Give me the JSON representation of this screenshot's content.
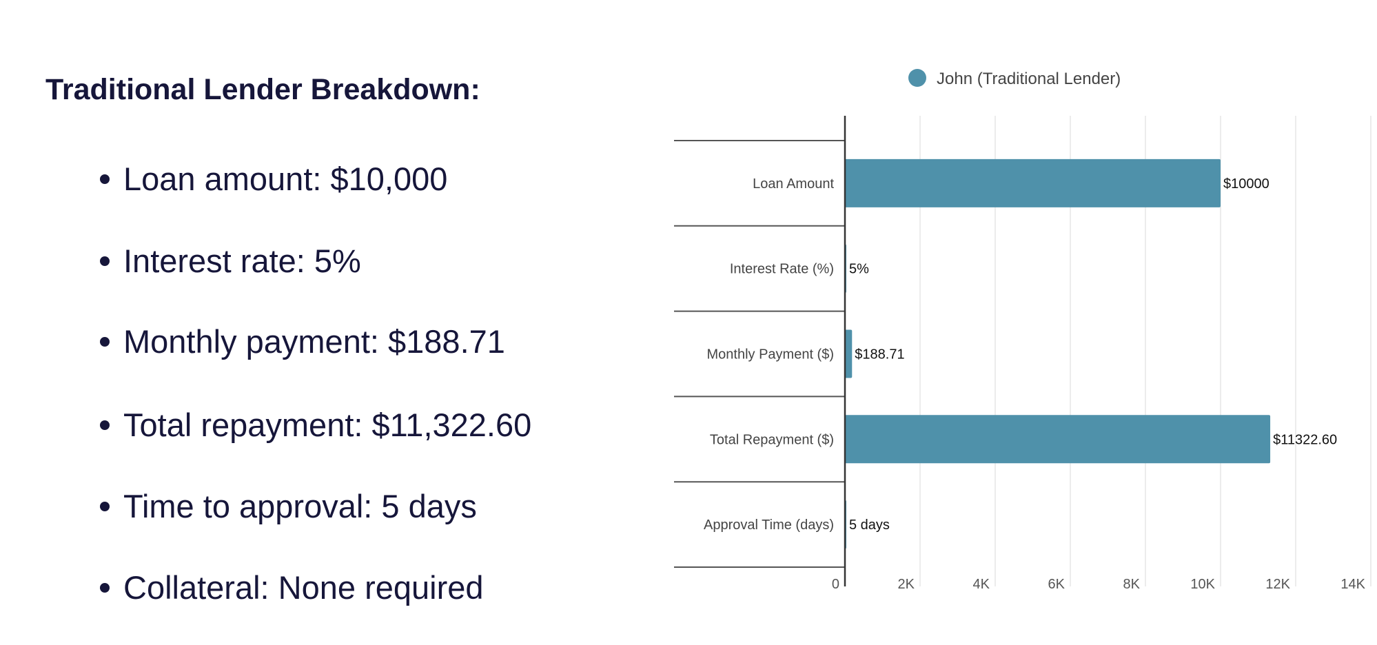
{
  "breakdown": {
    "title": "Traditional Lender Breakdown:",
    "items": [
      "Loan amount: $10,000",
      "Interest rate: 5%",
      "Monthly payment: $188.71",
      "Total repayment: $11,322.60",
      "Time to approval: 5 days",
      "Collateral: None required"
    ]
  },
  "chart_data": {
    "type": "bar",
    "orientation": "horizontal",
    "categories": [
      "Loan Amount",
      "Interest Rate (%)",
      "Monthly Payment ($)",
      "Total Repayment ($)",
      "Approval Time (days)"
    ],
    "series": [
      {
        "name": "John (Traditional Lender)",
        "values": [
          10000,
          5,
          188.71,
          11322.6,
          5
        ],
        "color": "#4f91aa"
      }
    ],
    "data_labels": [
      "$10000",
      "5%",
      "$188.71",
      "$11322.60",
      "5 days"
    ],
    "xlim": [
      0,
      14000
    ],
    "xticks": [
      0,
      2000,
      4000,
      6000,
      8000,
      10000,
      12000,
      14000
    ],
    "xtick_labels": [
      "0",
      "2K",
      "4K",
      "6K",
      "8K",
      "10K",
      "12K",
      "14K"
    ],
    "legend": "top",
    "grid": true
  }
}
